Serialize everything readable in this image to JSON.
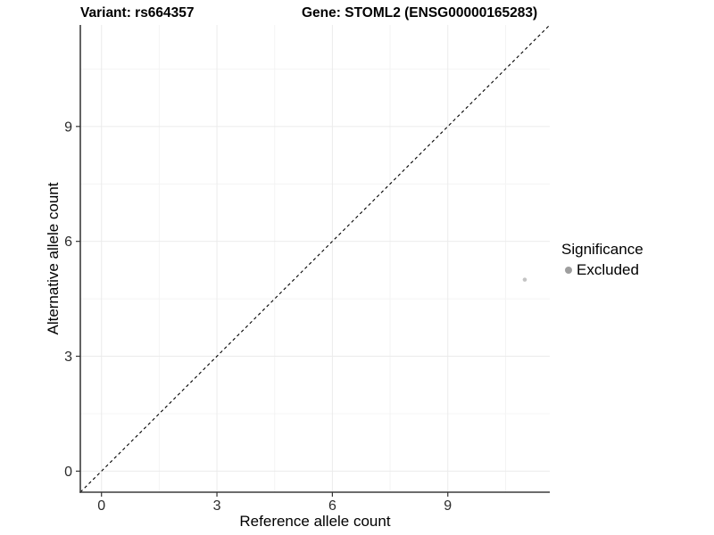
{
  "window": {
    "background": "#ffffff"
  },
  "header": {
    "title_variant": "Variant: rs664357",
    "title_gene": "Gene: STOML2 (ENSG00000165283)"
  },
  "chart_data": {
    "type": "scatter",
    "title": "Variant: rs664357   Gene: STOML2 (ENSG00000165283)",
    "xlabel": "Reference allele count",
    "ylabel": "Alternative allele count",
    "x_ticks": [
      0,
      3,
      6,
      9
    ],
    "y_ticks": [
      0,
      3,
      6,
      9
    ],
    "minor_breaks": [
      1.5,
      4.5,
      7.5,
      10.5
    ],
    "xlim": [
      -0.55,
      11.65
    ],
    "ylim": [
      -0.55,
      11.65
    ],
    "grid": "major+minor",
    "legend_position": "right",
    "reference_line": {
      "type": "identity",
      "equation": "y = x",
      "style": "dashed",
      "color": "#000000"
    },
    "series": [
      {
        "name": "Excluded",
        "color": "#c4c4c4",
        "points": [
          {
            "x": 11,
            "y": 5
          }
        ]
      }
    ],
    "legend": {
      "title": "Significance",
      "items": [
        {
          "label": "Excluded",
          "marker": "circle",
          "color": "#9e9e9e"
        }
      ]
    }
  },
  "colors": {
    "grid_major": "#ebebeb",
    "grid_minor": "#f4f4f4",
    "axis_line": "#3c3c3c",
    "tick_mark": "#333333",
    "tick_label": "#2b2b2b",
    "point": "#c4c4c4",
    "legend_key": "#9e9e9e"
  }
}
